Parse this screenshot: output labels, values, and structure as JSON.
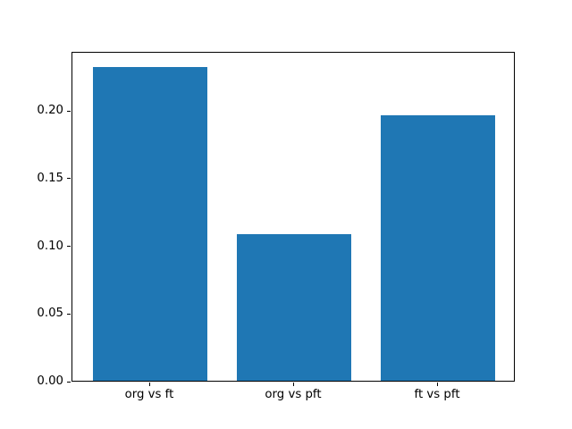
{
  "chart_data": {
    "type": "bar",
    "title": "",
    "xlabel": "",
    "ylabel": "",
    "categories": [
      "org vs ft",
      "org vs pft",
      "ft vs pft"
    ],
    "values": [
      0.232,
      0.108,
      0.196
    ],
    "bar_color": "#1f77b4",
    "bar_width_units": 0.8,
    "xlim": [
      -0.54,
      2.54
    ],
    "ylim": [
      0,
      0.2436
    ],
    "yticks": [
      0.0,
      0.05,
      0.1,
      0.15,
      0.2
    ],
    "ytick_labels": [
      "0.00",
      "0.05",
      "0.10",
      "0.15",
      "0.20"
    ],
    "grid": false,
    "legend": null,
    "axis_color": "#000000",
    "background_color": "#ffffff"
  }
}
